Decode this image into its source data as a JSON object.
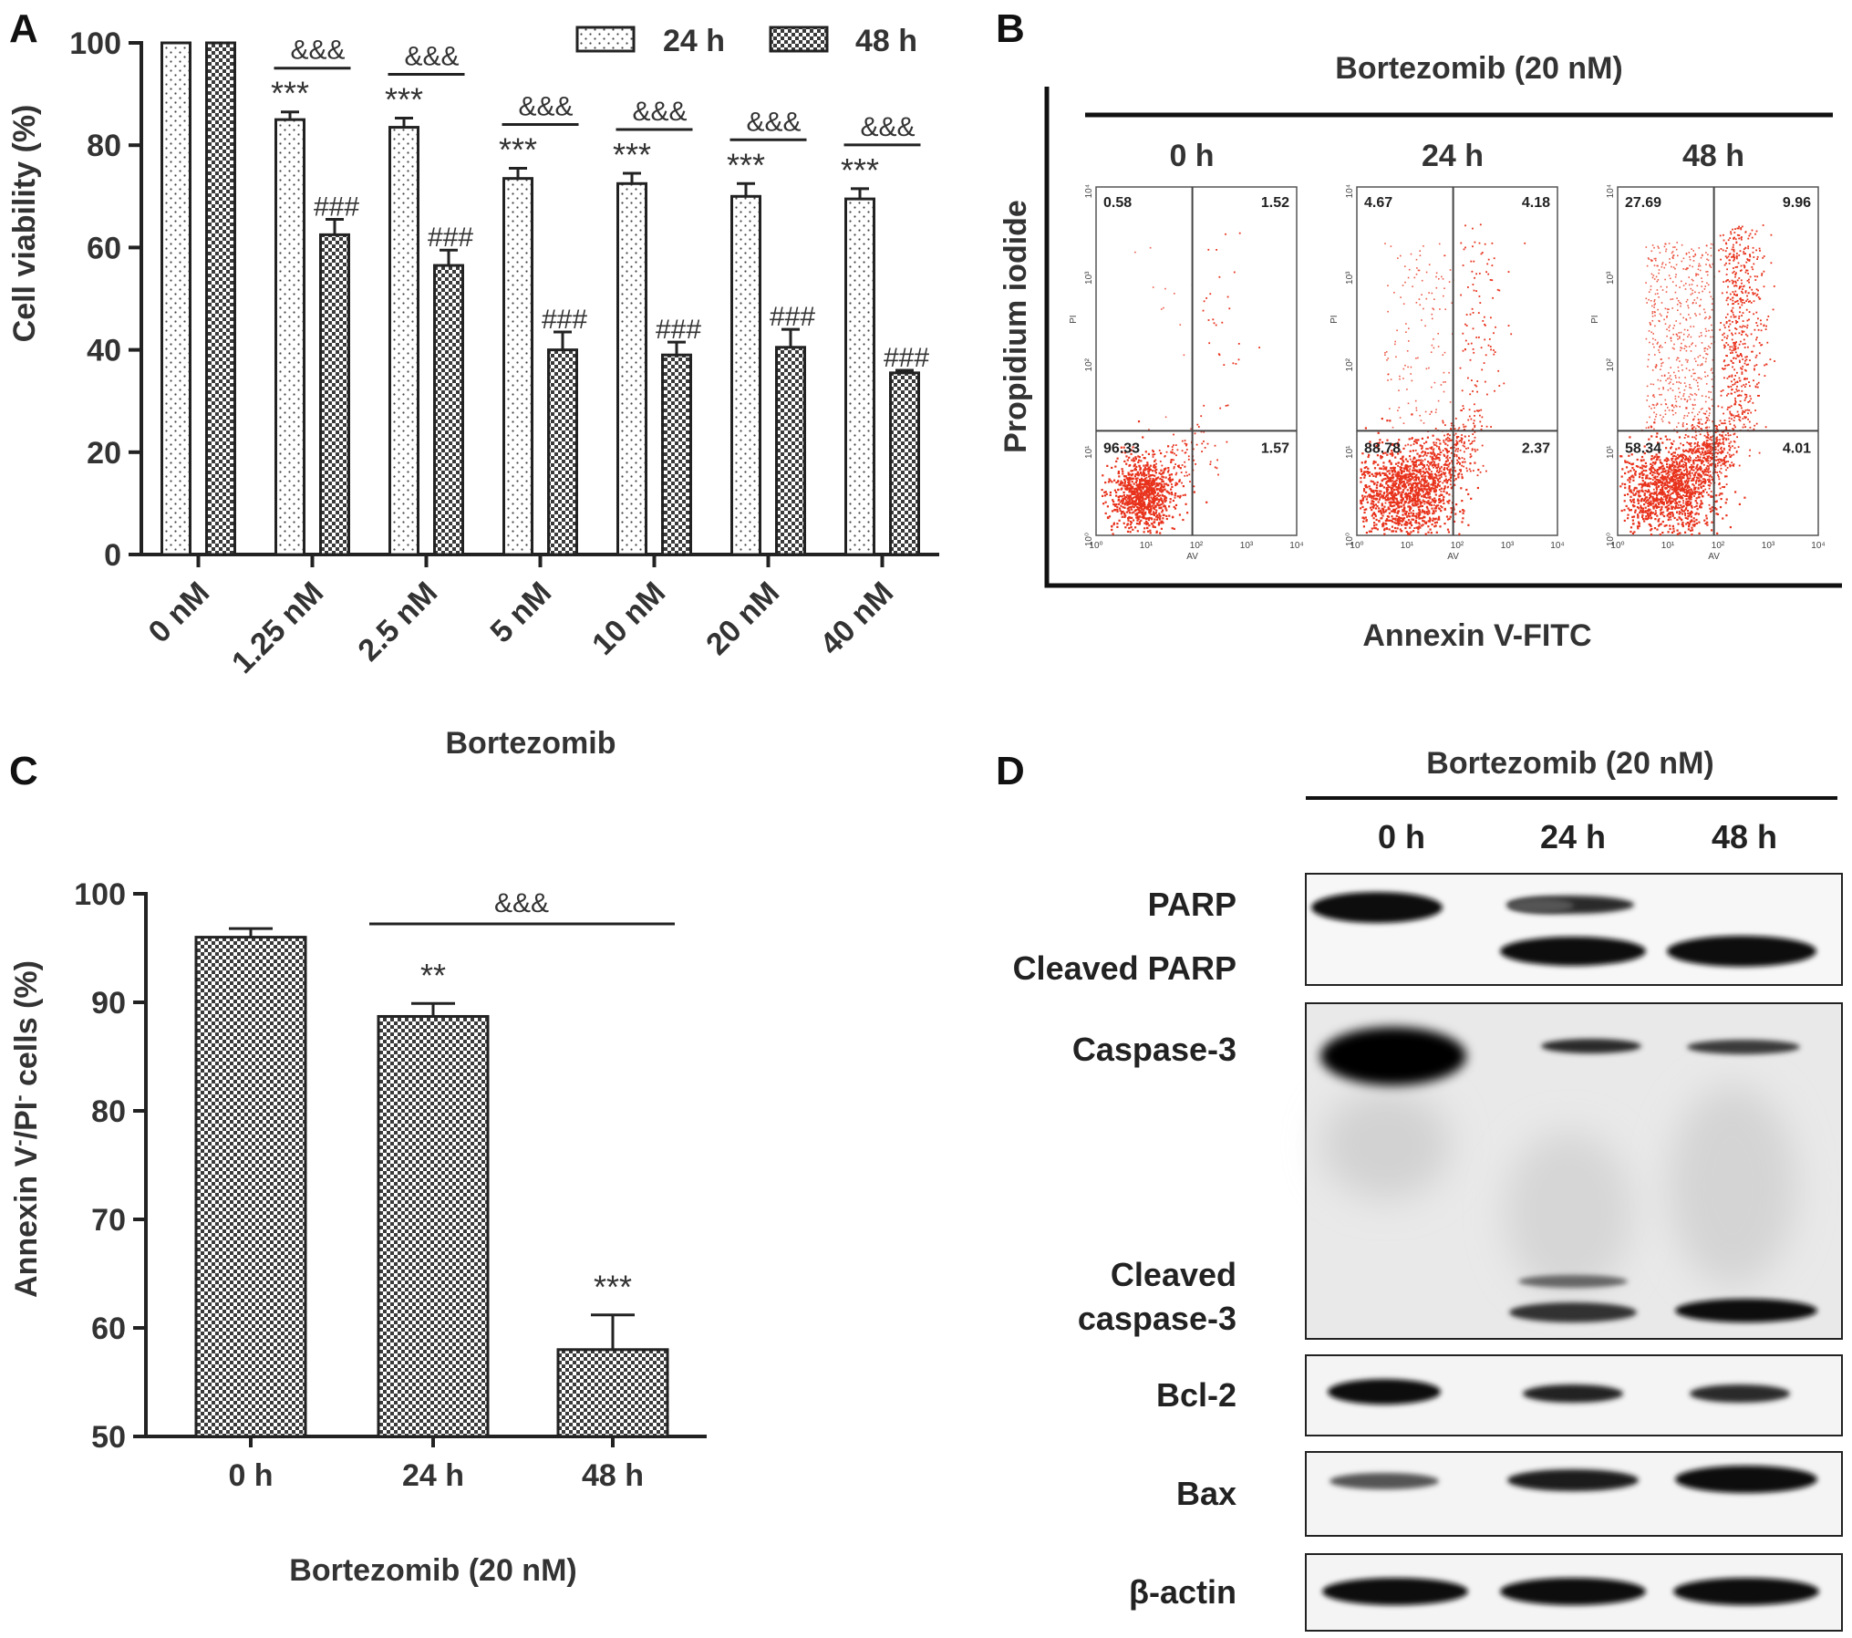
{
  "colors": {
    "ink": "#222222",
    "bar_fill": "#ffffff",
    "dot_red": "#e8321c",
    "band": "#111111"
  },
  "panelA": {
    "letter": "A",
    "chart_data": {
      "type": "bar",
      "categories": [
        "0 nM",
        "1.25 nM",
        "2.5 nM",
        "5 nM",
        "10 nM",
        "20 nM",
        "40 nM"
      ],
      "series": [
        {
          "name": "24 h",
          "pattern": "dots",
          "values": [
            100,
            85,
            83.5,
            73.5,
            72.5,
            70,
            69.5
          ],
          "errors": [
            0,
            1.5,
            1.8,
            2,
            2,
            2.5,
            2
          ]
        },
        {
          "name": "48 h",
          "pattern": "checker",
          "values": [
            100,
            62.5,
            56.5,
            40,
            39,
            40.5,
            35.5
          ],
          "errors": [
            0,
            3,
            3,
            3.5,
            2.5,
            3.5,
            0.5
          ]
        }
      ],
      "sig_24h": [
        "",
        "***",
        "***",
        "***",
        "***",
        "***",
        "***"
      ],
      "sig_48h": [
        "",
        "###",
        "###",
        "###",
        "###",
        "###",
        "###"
      ],
      "sig_pair": [
        "",
        "&&&",
        "&&&",
        "&&&",
        "&&&",
        "&&&",
        "&&&"
      ],
      "ylabel": "Cell viability (%)",
      "xlabel": "Bortezomib",
      "ylim": [
        0,
        100
      ],
      "yticks": [
        "0",
        "20",
        "40",
        "60",
        "80",
        "100"
      ],
      "legend_position": "top-right"
    }
  },
  "panelB": {
    "letter": "B",
    "treatment": "Bortezomib (20 nM)",
    "ylabel": "Propidium iodide",
    "xlabel": "Annexin V-FITC",
    "inner_xlabel": "AV",
    "inner_ylabel": "PI",
    "plots": [
      {
        "time": "0 h",
        "q_ul": "0.58",
        "q_ur": "1.52",
        "q_ll": "96.33",
        "q_lr": "1.57"
      },
      {
        "time": "24 h",
        "q_ul": "4.67",
        "q_ur": "4.18",
        "q_ll": "88.78",
        "q_lr": "2.37"
      },
      {
        "time": "48 h",
        "q_ul": "27.69",
        "q_ur": "9.96",
        "q_ll": "58.34",
        "q_lr": "4.01"
      }
    ],
    "log_ticks": [
      "10⁰",
      "10¹",
      "10²",
      "10³",
      "10⁴"
    ]
  },
  "panelC": {
    "letter": "C",
    "chart_data": {
      "type": "bar",
      "categories": [
        "0 h",
        "24 h",
        "48 h"
      ],
      "values": [
        96,
        88.7,
        58
      ],
      "errors": [
        0.8,
        1.2,
        3.2
      ],
      "sig": [
        "",
        "**",
        "***"
      ],
      "bracket": "&&&",
      "ylabel_main": "Annexin V",
      "ylabel_sup1": "-",
      "ylabel_mid": "/PI",
      "ylabel_sup2": "-",
      "ylabel_end": " cells (%)",
      "xlabel": "Bortezomib (20 nM)",
      "ylim": [
        50,
        100
      ],
      "yticks": [
        "50",
        "60",
        "70",
        "80",
        "90",
        "100"
      ]
    }
  },
  "panelD": {
    "letter": "D",
    "treatment": "Bortezomib (20 nM)",
    "times": [
      "0 h",
      "24 h",
      "48 h"
    ],
    "labels": {
      "parp": "PARP",
      "cleaved_parp": "Cleaved PARP",
      "casp3": "Caspase-3",
      "cleaved_casp3_1": "Cleaved",
      "cleaved_casp3_2": "caspase-3",
      "bcl2": "Bcl-2",
      "bax": "Bax",
      "actin": "β-actin"
    }
  }
}
